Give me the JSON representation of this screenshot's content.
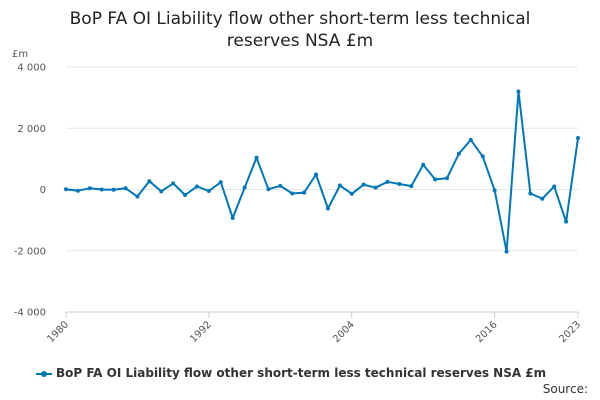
{
  "title_line1": "BoP FA OI Liability flow other short-term less technical",
  "title_line2": "reserves NSA £m",
  "source_label": "Source:",
  "colors": {
    "series": "#0077b6",
    "grid": "#e6e6e6",
    "axis": "#cccccc"
  },
  "chart_data": {
    "type": "line",
    "title": "BoP FA OI Liability flow other short-term less technical reserves NSA £m",
    "ylabel": "£m",
    "xlabel": "",
    "ylim": [
      -4000,
      4000
    ],
    "xlim": [
      1980,
      2023
    ],
    "grid": true,
    "legend_position": "bottom",
    "y_ticks": [
      4000,
      2000,
      0,
      -2000,
      -4000
    ],
    "y_tick_labels": [
      "4 000",
      "2 000",
      "0",
      "-2 000",
      "-4 000"
    ],
    "x_ticks": [
      1980,
      1992,
      2004,
      2016,
      2023
    ],
    "x_tick_labels": [
      "1980",
      "1992",
      "2004",
      "2016",
      "2023"
    ],
    "series": [
      {
        "name": "BoP FA OI Liability flow other short-term less technical reserves NSA £m",
        "x": [
          1980,
          1981,
          1982,
          1983,
          1984,
          1985,
          1986,
          1987,
          1988,
          1989,
          1990,
          1991,
          1992,
          1993,
          1994,
          1995,
          1996,
          1997,
          1998,
          1999,
          2000,
          2001,
          2002,
          2003,
          2004,
          2005,
          2006,
          2007,
          2008,
          2009,
          2010,
          2011,
          2012,
          2013,
          2014,
          2015,
          2016,
          2017,
          2018,
          2019,
          2020,
          2021,
          2022,
          2023
        ],
        "values": [
          10,
          -40,
          40,
          0,
          -10,
          40,
          -230,
          270,
          -60,
          200,
          -180,
          100,
          -50,
          240,
          -930,
          60,
          1040,
          10,
          120,
          -130,
          -100,
          490,
          -620,
          130,
          -140,
          160,
          60,
          250,
          180,
          110,
          810,
          330,
          370,
          1170,
          1620,
          1080,
          -30,
          -2030,
          3200,
          -130,
          -300,
          100,
          -1050,
          1680
        ]
      }
    ]
  }
}
